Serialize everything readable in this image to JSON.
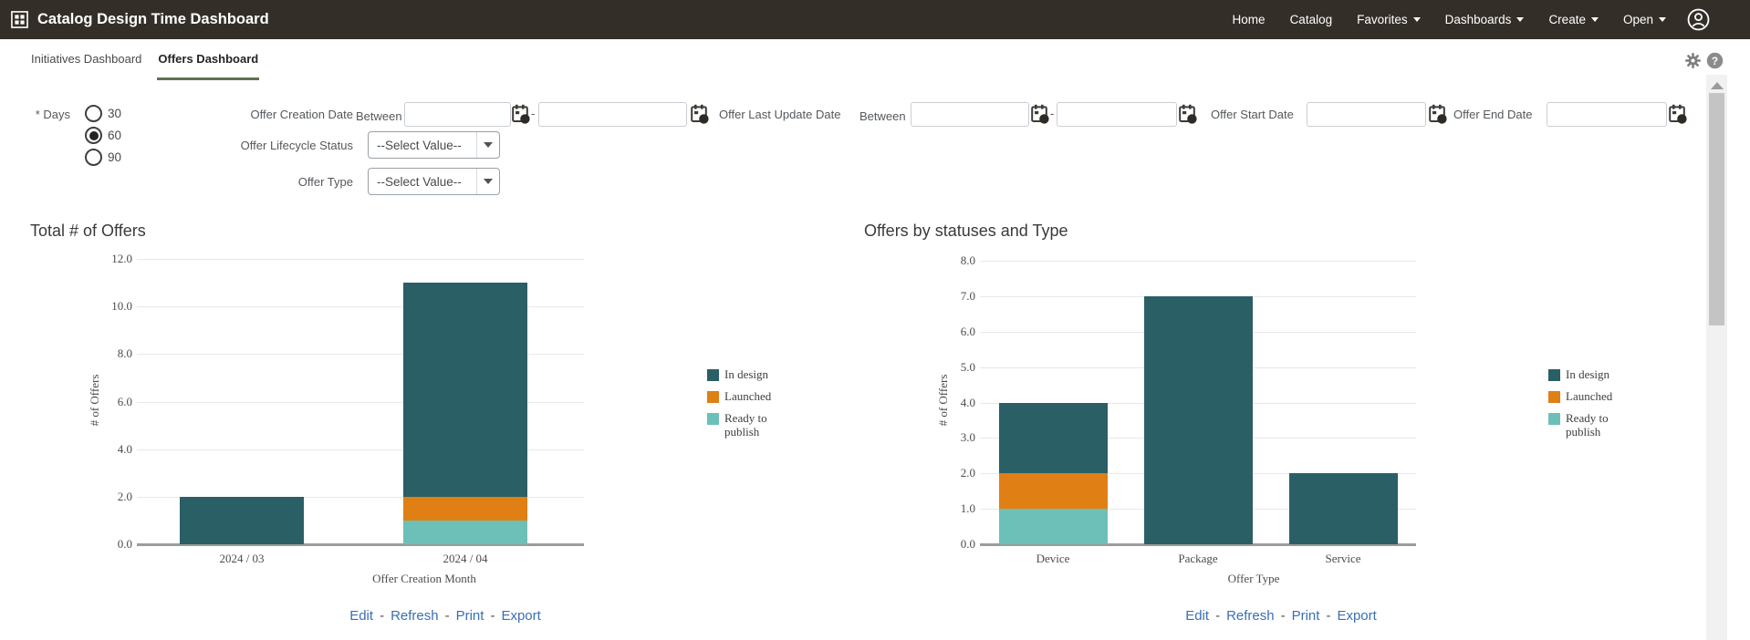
{
  "header": {
    "title": "Catalog Design Time Dashboard",
    "nav": [
      {
        "label": "Home",
        "dropdown": false
      },
      {
        "label": "Catalog",
        "dropdown": false
      },
      {
        "label": "Favorites",
        "dropdown": true
      },
      {
        "label": "Dashboards",
        "dropdown": true
      },
      {
        "label": "Create",
        "dropdown": true
      },
      {
        "label": "Open",
        "dropdown": true
      }
    ]
  },
  "tabs": [
    {
      "label": "Initiatives Dashboard",
      "active": false
    },
    {
      "label": "Offers Dashboard",
      "active": true
    }
  ],
  "page_tools": {
    "help_glyph": "?"
  },
  "filters": {
    "days": {
      "label": "* Days",
      "options": [
        "30",
        "60",
        "90"
      ],
      "selected": "60"
    },
    "offer_creation_date": {
      "label": "Offer Creation Date",
      "between": "Between",
      "from": "",
      "to": "",
      "range_separator": "-"
    },
    "offer_lifecycle_status": {
      "label": "Offer Lifecycle Status",
      "value": "--Select Value--"
    },
    "offer_type": {
      "label": "Offer Type",
      "value": "--Select Value--"
    },
    "offer_last_update_date": {
      "label": "Offer Last Update Date",
      "between": "Between",
      "from": "",
      "to": "",
      "range_separator": "-"
    },
    "offer_start_date": {
      "label": "Offer Start Date",
      "value": ""
    },
    "offer_end_date": {
      "label": "Offer End Date",
      "value": ""
    }
  },
  "colors": {
    "header_bg": "#332e28",
    "tab_underline": "#5e7351",
    "in_design": "#2a5f66",
    "launched": "#df7f14",
    "ready_to_publish": "#6cc0b8",
    "link": "#3a6fb3"
  },
  "chart_data": [
    {
      "type": "bar",
      "stacked": true,
      "title": "Total # of Offers",
      "categories": [
        "2024 / 03",
        "2024 / 04"
      ],
      "series": [
        {
          "name": "In design",
          "values": [
            2,
            9
          ],
          "color": "#2a5f66"
        },
        {
          "name": "Launched",
          "values": [
            0,
            1
          ],
          "color": "#df7f14"
        },
        {
          "name": "Ready to publish",
          "values": [
            0,
            1
          ],
          "color": "#6cc0b8"
        }
      ],
      "stack_order_bottom_to_top": [
        "Ready to publish",
        "Launched",
        "In design"
      ],
      "xlabel": "Offer Creation Month",
      "ylabel": "# of Offers",
      "ylim": [
        0,
        12
      ],
      "ytick_step": 2,
      "grid": true,
      "legend_position": "right",
      "links": [
        "Edit",
        "Refresh",
        "Print",
        "Export"
      ],
      "links_separator": "-"
    },
    {
      "type": "bar",
      "stacked": true,
      "title": "Offers by statuses and Type",
      "categories": [
        "Device",
        "Package",
        "Service"
      ],
      "series": [
        {
          "name": "In design",
          "values": [
            2,
            7,
            2
          ],
          "color": "#2a5f66"
        },
        {
          "name": "Launched",
          "values": [
            1,
            0,
            0
          ],
          "color": "#df7f14"
        },
        {
          "name": "Ready to publish",
          "values": [
            1,
            0,
            0
          ],
          "color": "#6cc0b8"
        }
      ],
      "stack_order_bottom_to_top": [
        "Ready to publish",
        "Launched",
        "In design"
      ],
      "xlabel": "Offer Type",
      "ylabel": "# of Offers",
      "ylim": [
        0,
        8
      ],
      "ytick_step": 1,
      "grid": true,
      "legend_position": "right",
      "links": [
        "Edit",
        "Refresh",
        "Print",
        "Export"
      ],
      "links_separator": "-"
    }
  ]
}
